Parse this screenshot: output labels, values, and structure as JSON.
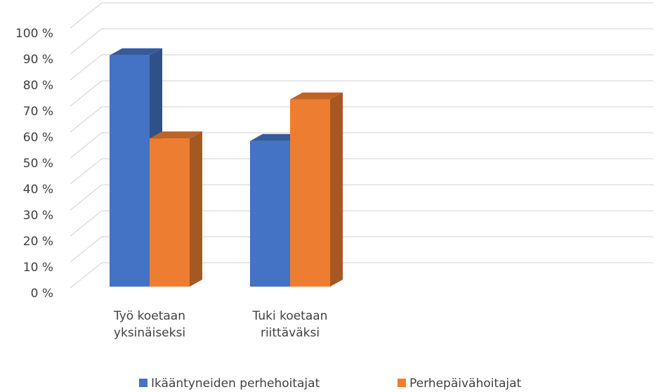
{
  "chart_data": {
    "type": "bar3d",
    "categories": [
      "Työ koetaan yksinäiseksi",
      "Tuki koetaan riittäväksi"
    ],
    "series": [
      {
        "name": "Ikääntyneiden perhehoitajat",
        "color": "#4472c4",
        "values": [
          89,
          56
        ]
      },
      {
        "name": "Perhepäivähoitajat",
        "color": "#ed7d31",
        "values": [
          57,
          72
        ]
      }
    ],
    "ylim": [
      0,
      100
    ],
    "yticks": [
      {
        "value": 0,
        "label": "0 %"
      },
      {
        "value": 10,
        "label": "10 %"
      },
      {
        "value": 20,
        "label": "20 %"
      },
      {
        "value": 30,
        "label": "30 %"
      },
      {
        "value": 40,
        "label": "40 %"
      },
      {
        "value": 50,
        "label": "50 %"
      },
      {
        "value": 60,
        "label": "60 %"
      },
      {
        "value": 70,
        "label": "70 %"
      },
      {
        "value": 80,
        "label": "80 %"
      },
      {
        "value": 90,
        "label": "90 %"
      },
      {
        "value": 100,
        "label": "100 %"
      }
    ],
    "grid": true,
    "legend": "bottom"
  }
}
